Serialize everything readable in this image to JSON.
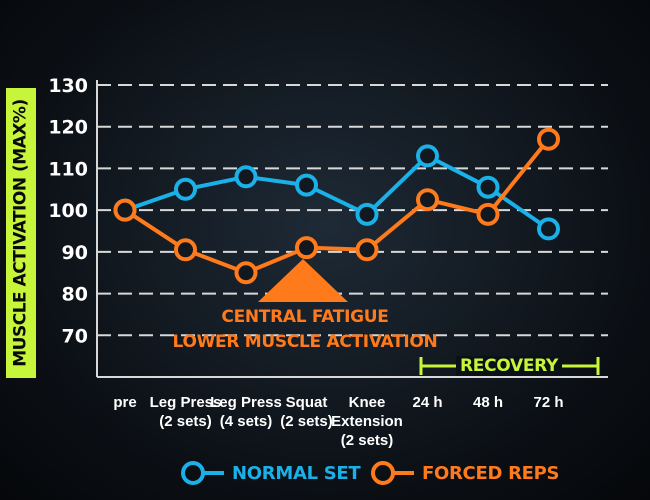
{
  "chart_data": {
    "type": "line",
    "ylabel": "MUSCLE ACTIVATION (MAX%)",
    "xlabel": "",
    "title": "",
    "ylim": [
      60,
      130
    ],
    "yticks": [
      70,
      80,
      90,
      100,
      110,
      120,
      130
    ],
    "grid": true,
    "categories": [
      [
        "pre"
      ],
      [
        "Leg Press",
        "(2 sets)"
      ],
      [
        "Leg Press",
        "(4 sets)"
      ],
      [
        "Squat",
        "(2 sets)"
      ],
      [
        "Knee",
        "Extension",
        "(2 sets)"
      ],
      [
        "24 h"
      ],
      [
        "48 h"
      ],
      [
        "72 h"
      ]
    ],
    "series": [
      {
        "name": "NORMAL SET",
        "color": "#1ab0e8",
        "values": [
          100,
          105,
          108,
          106,
          99,
          113,
          105.5,
          95.5
        ]
      },
      {
        "name": "FORCED REPS",
        "color": "#ff7a1a",
        "values": [
          100,
          90.5,
          85,
          91,
          90.5,
          102.5,
          99,
          117
        ]
      }
    ],
    "annotation": {
      "lines": [
        "CENTRAL FATIGUE",
        "LOWER MUSCLE ACTIVATION"
      ],
      "color": "#ff7a1a"
    },
    "recovery_label": "RECOVERY",
    "legend_position": "bottom"
  },
  "colors": {
    "accent_green": "#c6f53a",
    "normal": "#1ab0e8",
    "forced": "#ff7a1a"
  }
}
